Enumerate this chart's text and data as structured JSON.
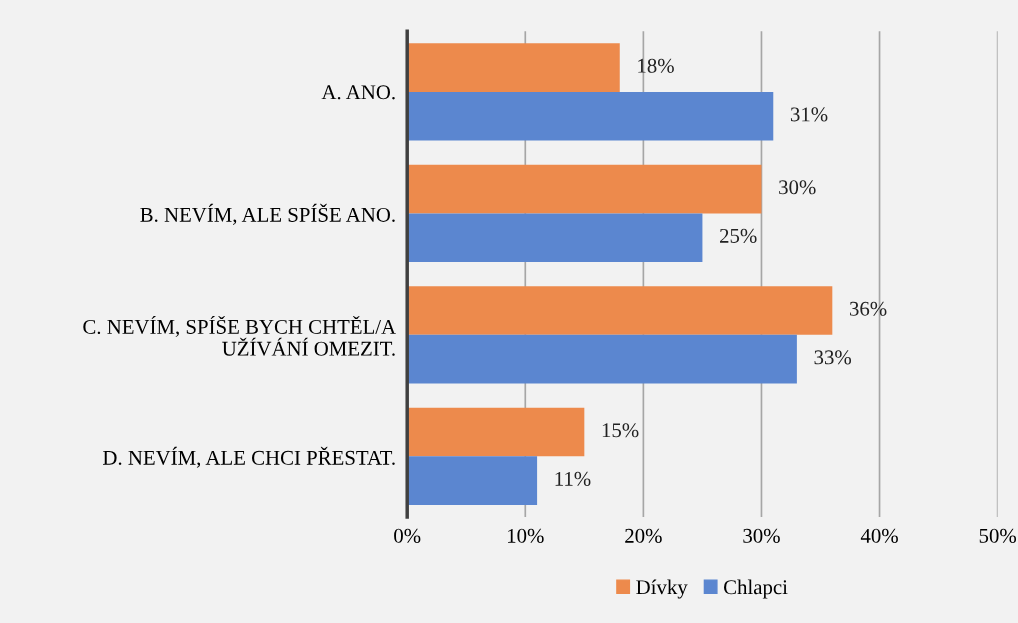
{
  "chart_data": {
    "type": "bar",
    "orientation": "horizontal",
    "categories": [
      "A. ANO.",
      "B. NEVÍM, ALE SPÍŠE ANO.",
      "C. NEVÍM, SPÍŠE BYCH CHTĚL/A\nUŽÍVÁNÍ OMEZIT.",
      "D. NEVÍM, ALE CHCI PŘESTAT."
    ],
    "series": [
      {
        "name": "Dívky",
        "color": "#ed8a4c",
        "values": [
          18,
          30,
          36,
          15
        ],
        "value_labels": [
          "18%",
          "30%",
          "36%",
          "15%"
        ]
      },
      {
        "name": "Chlapci",
        "color": "#5b86d0",
        "values": [
          31,
          25,
          33,
          11
        ],
        "value_labels": [
          "31%",
          "25%",
          "33%",
          "11%"
        ]
      }
    ],
    "xlim": [
      0,
      50
    ],
    "xticks": [
      {
        "value": 0,
        "label": "0%"
      },
      {
        "value": 10,
        "label": "10%"
      },
      {
        "value": 20,
        "label": "20%"
      },
      {
        "value": 30,
        "label": "30%"
      },
      {
        "value": 40,
        "label": "40%"
      },
      {
        "value": 50,
        "label": "50%"
      }
    ],
    "grid": "x",
    "legend": "bottom"
  }
}
